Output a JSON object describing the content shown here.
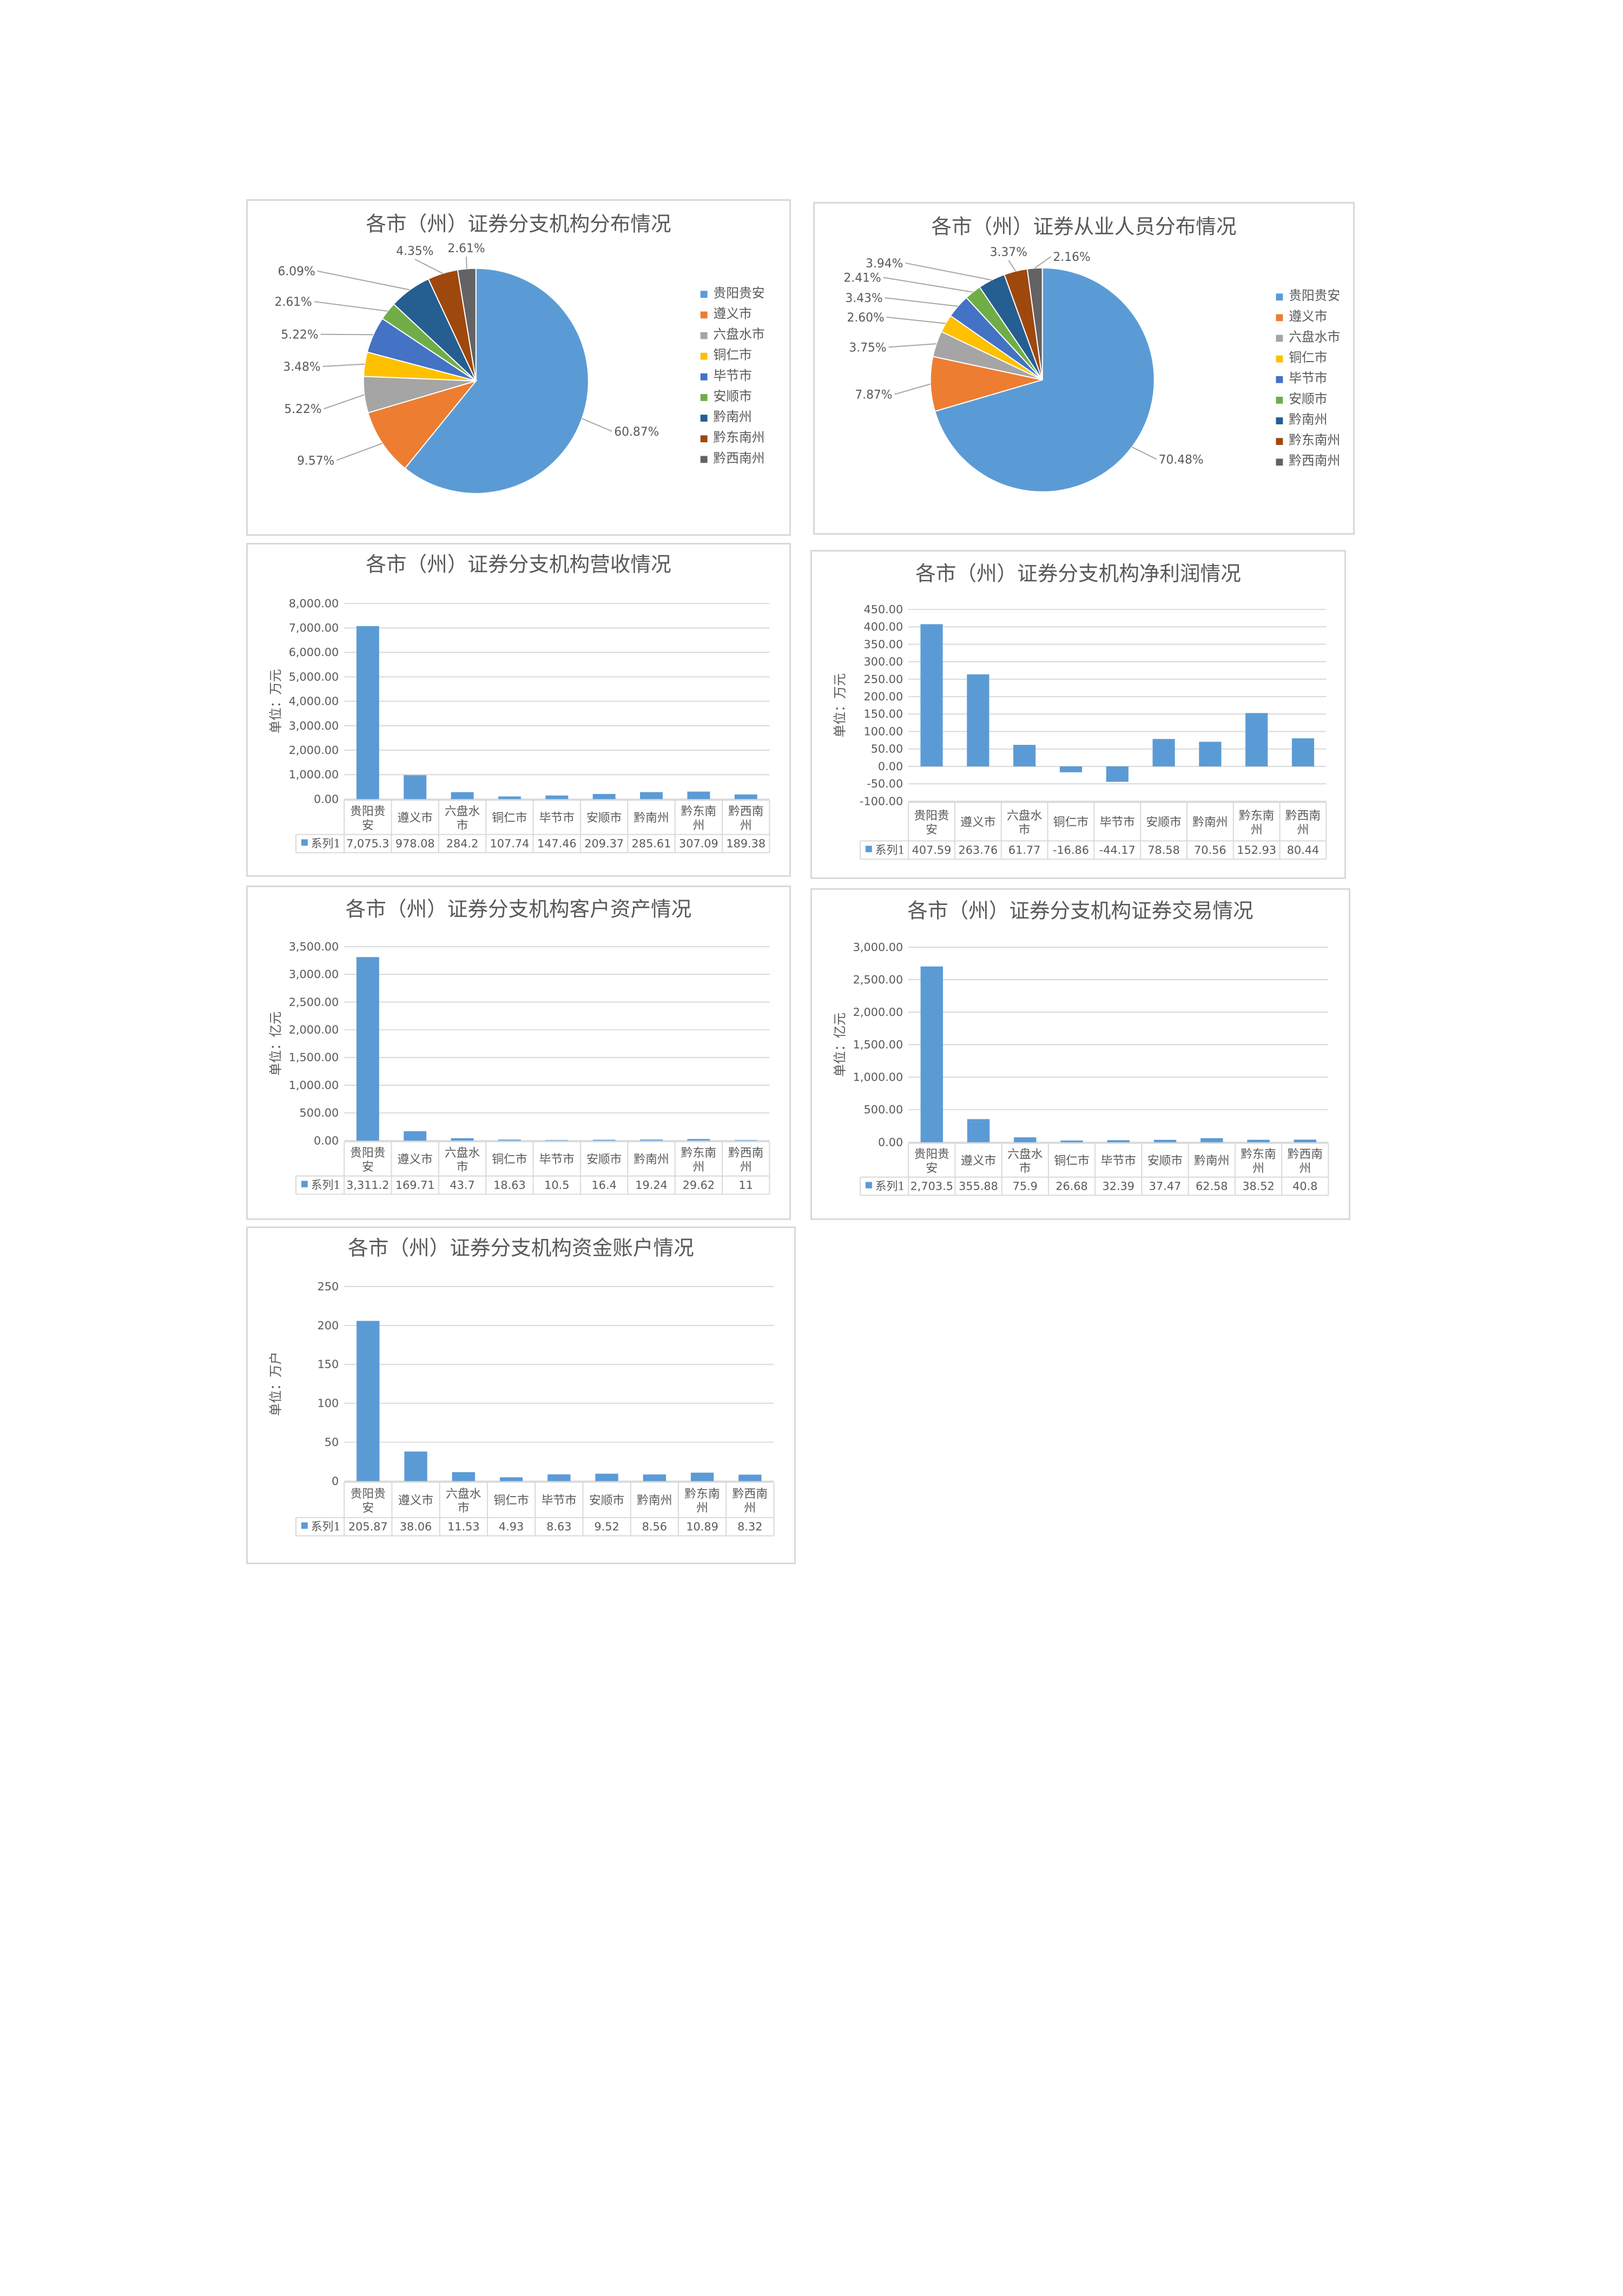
{
  "colors": {
    "pie": [
      "#5b9bd5",
      "#ed7d31",
      "#a5a5a5",
      "#ffc000",
      "#4472c4",
      "#70ad47",
      "#255e91",
      "#9e480e",
      "#636363"
    ],
    "bar": "#5b9bd5",
    "grid": "#d9d9d9",
    "text": "#595959"
  },
  "chart_data": [
    {
      "type": "pie",
      "title": "各市（州）证券分支机构分布情况",
      "categories": [
        "贵阳贵安",
        "遵义市",
        "六盘水市",
        "铜仁市",
        "毕节市",
        "安顺市",
        "黔南州",
        "黔东南州",
        "黔西南州"
      ],
      "values": [
        60.87,
        9.57,
        5.22,
        3.48,
        5.22,
        2.61,
        6.09,
        4.35,
        2.61
      ],
      "labels": [
        "60.87%",
        "9.57%",
        "5.22%",
        "3.48%",
        "5.22%",
        "2.61%",
        "6.09%",
        "4.35%",
        "2.61%"
      ],
      "legend": "right"
    },
    {
      "type": "pie",
      "title": "各市（州）证券从业人员分布情况",
      "categories": [
        "贵阳贵安",
        "遵义市",
        "六盘水市",
        "铜仁市",
        "毕节市",
        "安顺市",
        "黔南州",
        "黔东南州",
        "黔西南州"
      ],
      "values": [
        70.48,
        7.87,
        3.75,
        2.6,
        3.43,
        2.41,
        3.94,
        3.37,
        2.16
      ],
      "labels": [
        "70.48%",
        "7.87%",
        "3.75%",
        "2.60%",
        "3.43%",
        "2.41%",
        "3.94%",
        "3.37%",
        "2.16%"
      ],
      "legend": "right"
    },
    {
      "type": "bar",
      "title": "各市（州）证券分支机构营收情况",
      "ylabel": "单位：万元",
      "categories": [
        [
          "贵阳贵",
          "安"
        ],
        [
          "遵义市"
        ],
        [
          "六盘水",
          "市"
        ],
        [
          "铜仁市"
        ],
        [
          "毕节市"
        ],
        [
          "安顺市"
        ],
        [
          "黔南州"
        ],
        [
          "黔东南",
          "州"
        ],
        [
          "黔西南",
          "州"
        ]
      ],
      "ylim": [
        0,
        8000
      ],
      "yticks": [
        0,
        1000,
        2000,
        3000,
        4000,
        5000,
        6000,
        7000,
        8000
      ],
      "ytick_labels": [
        "0.00",
        "1,000.00",
        "2,000.00",
        "3,000.00",
        "4,000.00",
        "5,000.00",
        "6,000.00",
        "7,000.00",
        "8,000.00"
      ],
      "series": [
        {
          "name": "系列1",
          "values": [
            7075.3,
            978.08,
            284.2,
            107.74,
            147.46,
            209.37,
            285.61,
            307.09,
            189.38
          ],
          "labels": [
            "7,075.3",
            "978.08",
            "284.2",
            "107.74",
            "147.46",
            "209.37",
            "285.61",
            "307.09",
            "189.38"
          ]
        }
      ],
      "grid": true,
      "legend": "data-table"
    },
    {
      "type": "bar",
      "title": "各市（州）证券分支机构净利润情况",
      "ylabel": "单位：万元",
      "categories": [
        [
          "贵阳贵",
          "安"
        ],
        [
          "遵义市"
        ],
        [
          "六盘水",
          "市"
        ],
        [
          "铜仁市"
        ],
        [
          "毕节市"
        ],
        [
          "安顺市"
        ],
        [
          "黔南州"
        ],
        [
          "黔东南",
          "州"
        ],
        [
          "黔西南",
          "州"
        ]
      ],
      "ylim": [
        -100,
        450
      ],
      "yticks": [
        -100,
        -50,
        0,
        50,
        100,
        150,
        200,
        250,
        300,
        350,
        400,
        450
      ],
      "ytick_labels": [
        "-100.00",
        "-50.00",
        "0.00",
        "50.00",
        "100.00",
        "150.00",
        "200.00",
        "250.00",
        "300.00",
        "350.00",
        "400.00",
        "450.00"
      ],
      "series": [
        {
          "name": "系列1",
          "values": [
            407.59,
            263.76,
            61.77,
            -16.86,
            -44.17,
            78.58,
            70.56,
            152.93,
            80.44
          ],
          "labels": [
            "407.59",
            "263.76",
            "61.77",
            "-16.86",
            "-44.17",
            "78.58",
            "70.56",
            "152.93",
            "80.44"
          ]
        }
      ],
      "grid": true,
      "legend": "data-table"
    },
    {
      "type": "bar",
      "title": "各市（州）证券分支机构客户资产情况",
      "ylabel": "单位：亿元",
      "categories": [
        [
          "贵阳贵",
          "安"
        ],
        [
          "遵义市"
        ],
        [
          "六盘水",
          "市"
        ],
        [
          "铜仁市"
        ],
        [
          "毕节市"
        ],
        [
          "安顺市"
        ],
        [
          "黔南州"
        ],
        [
          "黔东南",
          "州"
        ],
        [
          "黔西南",
          "州"
        ]
      ],
      "ylim": [
        0,
        3500
      ],
      "yticks": [
        0,
        500,
        1000,
        1500,
        2000,
        2500,
        3000,
        3500
      ],
      "ytick_labels": [
        "0.00",
        "500.00",
        "1,000.00",
        "1,500.00",
        "2,000.00",
        "2,500.00",
        "3,000.00",
        "3,500.00"
      ],
      "series": [
        {
          "name": "系列1",
          "values": [
            3311.2,
            169.71,
            43.7,
            18.63,
            10.5,
            16.4,
            19.24,
            29.62,
            11
          ],
          "labels": [
            "3,311.2",
            "169.71",
            "43.7",
            "18.63",
            "10.5",
            "16.4",
            "19.24",
            "29.62",
            "11"
          ]
        }
      ],
      "grid": true,
      "legend": "data-table"
    },
    {
      "type": "bar",
      "title": "各市（州）证券分支机构证券交易情况",
      "ylabel": "单位：亿元",
      "categories": [
        [
          "贵阳贵",
          "安"
        ],
        [
          "遵义市"
        ],
        [
          "六盘水",
          "市"
        ],
        [
          "铜仁市"
        ],
        [
          "毕节市"
        ],
        [
          "安顺市"
        ],
        [
          "黔南州"
        ],
        [
          "黔东南",
          "州"
        ],
        [
          "黔西南",
          "州"
        ]
      ],
      "ylim": [
        0,
        3000
      ],
      "yticks": [
        0,
        500,
        1000,
        1500,
        2000,
        2500,
        3000
      ],
      "ytick_labels": [
        "0.00",
        "500.00",
        "1,000.00",
        "1,500.00",
        "2,000.00",
        "2,500.00",
        "3,000.00"
      ],
      "series": [
        {
          "name": "系列1",
          "values": [
            2703.5,
            355.88,
            75.9,
            26.68,
            32.39,
            37.47,
            62.58,
            38.52,
            40.8
          ],
          "labels": [
            "2,703.5",
            "355.88",
            "75.9",
            "26.68",
            "32.39",
            "37.47",
            "62.58",
            "38.52",
            "40.8"
          ]
        }
      ],
      "grid": true,
      "legend": "data-table"
    },
    {
      "type": "bar",
      "title": "各市（州）证券分支机构资金账户情况",
      "ylabel": "单位：万户",
      "categories": [
        [
          "贵阳贵",
          "安"
        ],
        [
          "遵义市"
        ],
        [
          "六盘水",
          "市"
        ],
        [
          "铜仁市"
        ],
        [
          "毕节市"
        ],
        [
          "安顺市"
        ],
        [
          "黔南州"
        ],
        [
          "黔东南",
          "州"
        ],
        [
          "黔西南",
          "州"
        ]
      ],
      "ylim": [
        0,
        250
      ],
      "yticks": [
        0,
        50,
        100,
        150,
        200,
        250
      ],
      "ytick_labels": [
        "0",
        "50",
        "100",
        "150",
        "200",
        "250"
      ],
      "series": [
        {
          "name": "系列1",
          "values": [
            205.87,
            38.06,
            11.53,
            4.93,
            8.63,
            9.52,
            8.56,
            10.89,
            8.32
          ],
          "labels": [
            "205.87",
            "38.06",
            "11.53",
            "4.93",
            "8.63",
            "9.52",
            "8.56",
            "10.89",
            "8.32"
          ]
        }
      ],
      "grid": true,
      "legend": "data-table"
    }
  ]
}
